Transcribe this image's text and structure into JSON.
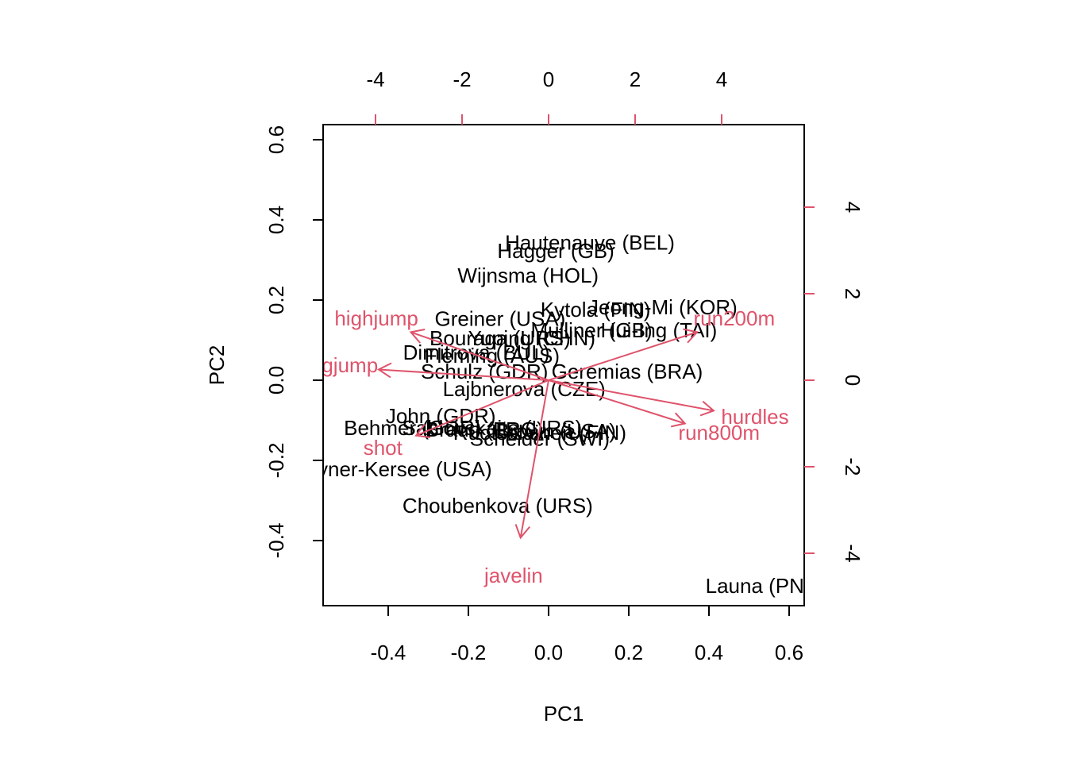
{
  "chart_data": {
    "type": "biplot",
    "xlabel": "PC1",
    "ylabel": "PC2",
    "xlim": [
      -0.5624,
      0.6376
    ],
    "ylim": [
      -0.5624,
      0.6376
    ],
    "xticks": [
      -0.4,
      -0.2,
      {
        "value": 0,
        "label": "0.0"
      },
      0.2,
      0.4,
      0.6
    ],
    "yticks": [
      -0.4,
      -0.2,
      {
        "value": 0,
        "label": "0.0"
      },
      0.2,
      0.4,
      0.6
    ],
    "x2lim": [
      -5.211,
      5.908
    ],
    "y2lim": [
      -5.211,
      5.908
    ],
    "x2ticks": [
      -4,
      -2,
      0,
      2,
      4
    ],
    "y2ticks": [
      -4,
      -2,
      0,
      2,
      4
    ],
    "points": {
      "color": "#000000",
      "labels": [
        "Joyner-Kersee (USA)",
        "John (GDR)",
        "Behmer (GDR)",
        "Sablovskaite (URS)",
        "Choubenkova (URS)",
        "Schulz (GDR)",
        "Fleming (AUS)",
        "Greiner (USA)",
        "Lajbnerova (CZE)",
        "Bouraga (URS)",
        "Wijnsma (HOL)",
        "Dimitrova (BUL)",
        "Scheider (SWI)",
        "Braun (FRG)",
        "Ruotsalainen (FIN)",
        "Yuping (CHN)",
        "Hagger (GB)",
        "Brown (USA)",
        "Mulliner (GB)",
        "Hautenauve (BEL)",
        "Kytola (FIN)",
        "Geremias (BRA)",
        "Hui-Ing (TAI)",
        "Jeong-Mi (KOR)",
        "Launa (PNG)"
      ],
      "x": [
        -0.386,
        -0.269,
        -0.339,
        -0.141,
        -0.127,
        -0.16,
        -0.141,
        -0.121,
        -0.061,
        -0.121,
        -0.051,
        -0.18,
        -0.022,
        -0.16,
        -0.022,
        -0.042,
        0.018,
        0.018,
        0.107,
        0.103,
        0.117,
        0.196,
        0.275,
        0.285,
        0.543
      ],
      "y": [
        -0.226,
        -0.093,
        -0.123,
        -0.123,
        -0.317,
        0.018,
        0.057,
        0.149,
        -0.026,
        0.101,
        0.257,
        0.065,
        -0.15,
        -0.127,
        -0.135,
        0.101,
        0.319,
        -0.131,
        0.121,
        0.339,
        0.172,
        0.018,
        0.121,
        0.178,
        -0.517
      ]
    },
    "loadings": {
      "color": "#DF536B",
      "labels": [
        "hurdles",
        "highjump",
        "shot",
        "run200m",
        "longjump",
        "javelin",
        "run800m"
      ],
      "x": [
        4.77,
        -3.98,
        -3.83,
        4.29,
        -4.91,
        -0.81,
        3.94
      ],
      "y": [
        -0.88,
        1.39,
        -1.6,
        1.39,
        0.31,
        -4.55,
        -1.25
      ]
    }
  }
}
